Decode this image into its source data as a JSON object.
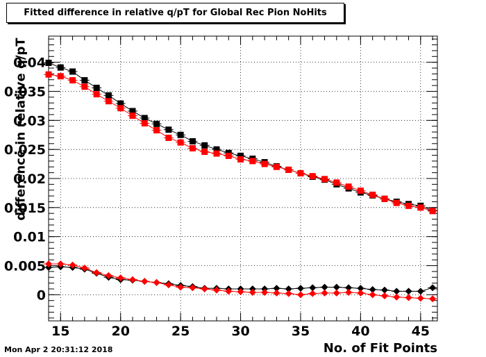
{
  "title": "Fitted difference in relative q/pT for Global Rec Pion NoHits",
  "timestamp": "Mon Apr  2 20:31:12 2018",
  "chart_data": {
    "type": "scatter",
    "title": "Fitted difference in relative q/pT for Global Rec Pion NoHits",
    "xlabel": "No. of Fit Points",
    "ylabel": "difference in relative q/pT",
    "xlim": [
      14,
      46.4
    ],
    "ylim": [
      -0.0045,
      0.0445
    ],
    "grid": true,
    "xticks": [
      15,
      20,
      25,
      30,
      35,
      40,
      45
    ],
    "yticks": [
      0,
      0.005,
      0.01,
      0.015,
      0.02,
      0.025,
      0.03,
      0.035,
      0.04
    ],
    "ytick_labels": [
      "0",
      "0.005",
      "0.01",
      "0.015",
      "0.02",
      "0.025",
      "0.03",
      "0.035",
      "0.04"
    ],
    "x": [
      14,
      15,
      16,
      17,
      18,
      19,
      20,
      21,
      22,
      23,
      24,
      25,
      26,
      27,
      28,
      29,
      30,
      31,
      32,
      33,
      34,
      35,
      36,
      37,
      38,
      39,
      40,
      41,
      42,
      43,
      44,
      45,
      46
    ],
    "series": [
      {
        "marker": "square",
        "color": "#000000",
        "values": [
          0.0399,
          0.0391,
          0.0384,
          0.0369,
          0.0356,
          0.0343,
          0.0329,
          0.0316,
          0.0304,
          0.0294,
          0.0284,
          0.0275,
          0.0264,
          0.0257,
          0.025,
          0.0244,
          0.0239,
          0.0234,
          0.0228,
          0.0221,
          0.0215,
          0.0209,
          0.0203,
          0.0198,
          0.019,
          0.0183,
          0.0176,
          0.0171,
          0.0165,
          0.016,
          0.0156,
          0.0153,
          0.0145
        ]
      },
      {
        "marker": "square",
        "color": "#ff0000",
        "values": [
          0.0379,
          0.0376,
          0.0369,
          0.0358,
          0.0345,
          0.0333,
          0.0321,
          0.0308,
          0.0295,
          0.0283,
          0.027,
          0.0262,
          0.0252,
          0.0246,
          0.0243,
          0.0239,
          0.0233,
          0.023,
          0.0225,
          0.022,
          0.0215,
          0.0209,
          0.0204,
          0.0199,
          0.0193,
          0.0186,
          0.0179,
          0.0172,
          0.0165,
          0.0158,
          0.0153,
          0.015,
          0.0144
        ]
      },
      {
        "marker": "diamond",
        "color": "#000000",
        "values": [
          0.0047,
          0.0048,
          0.0047,
          0.0044,
          0.0037,
          0.003,
          0.0026,
          0.0025,
          0.0023,
          0.0021,
          0.0019,
          0.0016,
          0.0014,
          0.0011,
          0.0011,
          0.001,
          0.001,
          0.001,
          0.001,
          0.0011,
          0.001,
          0.0011,
          0.0012,
          0.0013,
          0.0013,
          0.0012,
          0.0011,
          0.0009,
          0.0008,
          0.0006,
          0.0006,
          0.0006,
          0.0012
        ]
      },
      {
        "marker": "diamond",
        "color": "#ff0000",
        "values": [
          0.0053,
          0.0053,
          0.0051,
          0.0046,
          0.0038,
          0.0033,
          0.0029,
          0.0026,
          0.0023,
          0.0021,
          0.0017,
          0.0013,
          0.0012,
          0.001,
          0.0008,
          0.0006,
          0.0005,
          0.0004,
          0.0004,
          0.0003,
          0.0002,
          0.0,
          0.0002,
          0.0003,
          0.0003,
          0.0004,
          0.0003,
          0.0,
          -0.0002,
          -0.0004,
          -0.0005,
          -0.0006,
          -0.0007
        ]
      }
    ]
  }
}
